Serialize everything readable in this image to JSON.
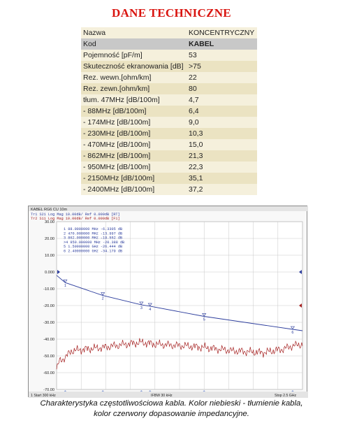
{
  "header": {
    "title": "DANE TECHNICZNE"
  },
  "spec_table": {
    "rows": [
      {
        "label": "Nazwa",
        "value": "KONCENTRYCZNY"
      },
      {
        "label": "Kod",
        "value": "KABEL"
      },
      {
        "label": "Pojemność [pF/m]",
        "value": "53"
      },
      {
        "label": "Skuteczność ekranowania [dB]",
        "value": ">75"
      },
      {
        "label": "Rez. wewn.[ohm/km]",
        "value": "22"
      },
      {
        "label": "Rez. zewn.[ohm/km]",
        "value": "80"
      },
      {
        "label": "tłum. 47MHz [dB/100m]",
        "value": "4,7"
      },
      {
        "label": "- 88MHz [dB/100m]",
        "value": "6,4"
      },
      {
        "label": "- 174MHz [dB/100m]",
        "value": "9,0"
      },
      {
        "label": "- 230MHz [dB/100m]",
        "value": "10,3"
      },
      {
        "label": "- 470MHz [dB/100m]",
        "value": "15,0"
      },
      {
        "label": "- 862MHz [dB/100m]",
        "value": "21,3"
      },
      {
        "label": "- 950MHz [dB/100m]",
        "value": "22,3"
      },
      {
        "label": "- 2150MHz [dB/100m]",
        "value": "35,1"
      },
      {
        "label": "- 2400MHz [dB/100m]",
        "value": "37,2"
      }
    ]
  },
  "analyzer": {
    "window_title": "KABEL RG6 CU 10m",
    "trace1_label": "Tr1  S21  Log Mag 10.00dB/ Ref 0.000dB [RT]",
    "trace2_label": "Tr2  S11  Log Mag 10.00dB/ Ref 0.000dB [F1]",
    "markers": [
      "1   88.0000000 MHz  -6.3305 dB",
      "2   470.000000 MHz  -13.997 dB",
      "3   862.000000 MHz  -19.552 dB",
      ">4  950.000000 MHz  -20.388 dB",
      "5   1.50000000 GHz  -26.444 dB",
      "6   2.40000000 GHz  -34.179 dB"
    ],
    "footer_left": "1  Start 300 kHz",
    "footer_center": "IFBW 30 kHz",
    "footer_right": "Stop 2.5 GHz",
    "colors": {
      "trace_s21": "#2b3c9c",
      "trace_s11": "#a52020",
      "grid": "#c8c8c8"
    }
  },
  "chart_data": {
    "type": "line",
    "title": "KABEL RG6 CU 10m",
    "xlabel": "",
    "ylabel": "",
    "xlim": [
      0.0003,
      2500
    ],
    "ylim": [
      -70,
      30
    ],
    "y_ticks": [
      "30.00",
      "20.00",
      "10.00",
      "0.000",
      "-10.00",
      "-20.00",
      "-30.00",
      "-40.00",
      "-50.00",
      "-60.00",
      "-70.00"
    ],
    "grid": true,
    "series": [
      {
        "name": "Tr1 S21",
        "x": [
          0.3,
          88,
          470,
          862,
          950,
          1500,
          2400,
          2500
        ],
        "values": [
          -2.0,
          -6.33,
          -14.0,
          -19.55,
          -20.39,
          -26.44,
          -34.18,
          -35.0
        ]
      },
      {
        "name": "Tr2 S11",
        "x": [
          0.3,
          30,
          88,
          150,
          300,
          470,
          700,
          862,
          1000,
          1300,
          1500,
          1800,
          2100,
          2300,
          2400,
          2500
        ],
        "values": [
          -58,
          -53,
          -51,
          -47,
          -46,
          -45,
          -43,
          -42,
          -43,
          -44,
          -45,
          -47,
          -48,
          -46,
          -44,
          -43
        ]
      }
    ],
    "markers": [
      {
        "id": "1",
        "x": 88,
        "y": -6.33
      },
      {
        "id": "2",
        "x": 470,
        "y": -14.0
      },
      {
        "id": "3",
        "x": 862,
        "y": -19.55
      },
      {
        "id": "4",
        "x": 950,
        "y": -20.39
      },
      {
        "id": "5",
        "x": 1500,
        "y": -26.44
      },
      {
        "id": "6",
        "x": 2400,
        "y": -34.18
      }
    ]
  },
  "caption": {
    "line1": "Charakterystyka częstotliwościowa kabla. Kolor niebieski - tłumienie kabla,",
    "line2": "kolor czerwony dopasowanie impedancyjne."
  }
}
